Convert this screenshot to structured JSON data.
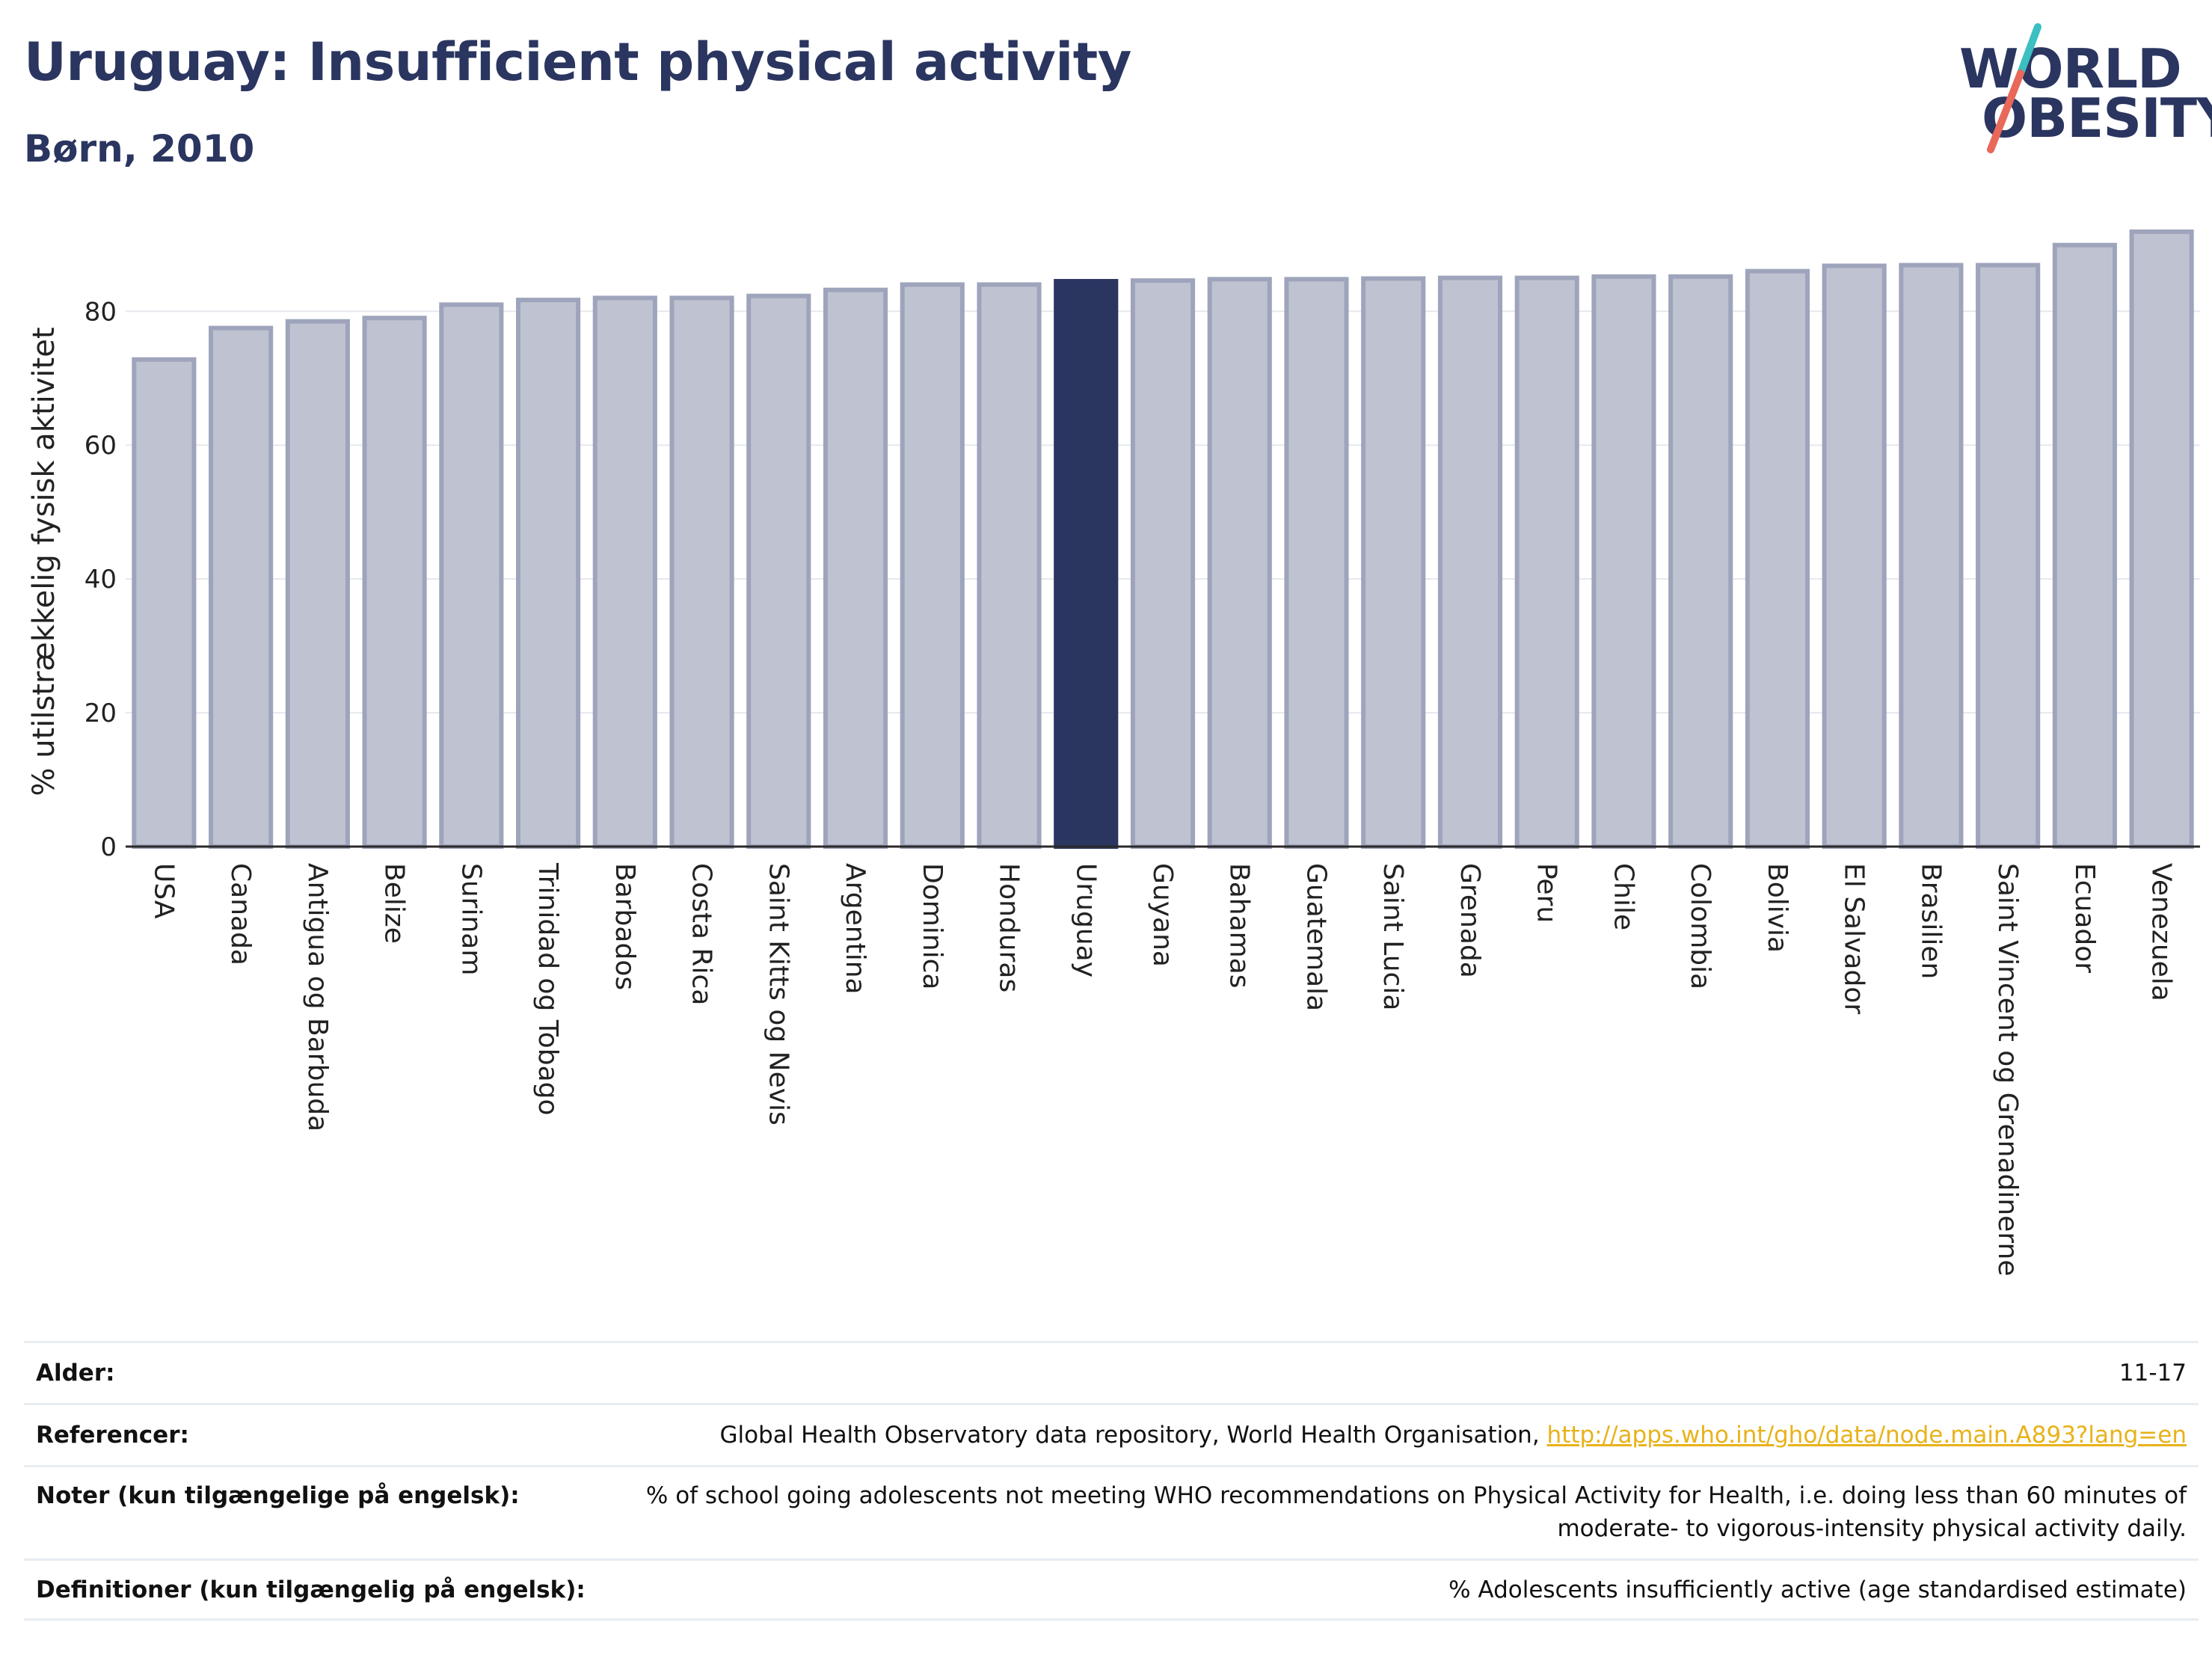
{
  "header": {
    "title": "Uruguay: Insufficient physical activity",
    "subtitle": "Børn, 2010"
  },
  "logo": {
    "line1": "WORLD",
    "line2": "OBESITY",
    "colors": {
      "text": "#2a3560",
      "slash_top": "#3bbfc1",
      "slash_bottom": "#e8685a"
    }
  },
  "chart_data": {
    "type": "bar",
    "ylabel": "% utilstrækkelig fysisk aktivitet",
    "xlabel": "",
    "ylim": [
      0,
      93
    ],
    "yticks": [
      0,
      20,
      40,
      60,
      80
    ],
    "grid": true,
    "highlight": "Uruguay",
    "colors": {
      "bar": "#bfc3d1",
      "bar_edge": "#9ea4bb",
      "highlight": "#2a3560",
      "grid": "#e6e8ee",
      "axis": "#2a2a2a"
    },
    "categories": [
      "USA",
      "Canada",
      "Antigua og Barbuda",
      "Belize",
      "Surinam",
      "Trinidad og Tobago",
      "Barbados",
      "Costa Rica",
      "Saint Kitts og Nevis",
      "Argentina",
      "Dominica",
      "Honduras",
      "Uruguay",
      "Guyana",
      "Bahamas",
      "Guatemala",
      "Saint Lucia",
      "Grenada",
      "Peru",
      "Chile",
      "Colombia",
      "Bolivia",
      "El Salvador",
      "Brasilien",
      "Saint Vincent og Grenadinerne",
      "Ecuador",
      "Venezuela"
    ],
    "values": [
      72.8,
      77.5,
      78.5,
      79.0,
      81.0,
      81.7,
      82.0,
      82.0,
      82.3,
      83.2,
      84.0,
      84.0,
      84.5,
      84.6,
      84.8,
      84.8,
      84.9,
      85.0,
      85.0,
      85.2,
      85.2,
      86.0,
      86.8,
      86.9,
      86.9,
      89.9,
      91.9
    ]
  },
  "meta": [
    {
      "label": "Alder:",
      "value": "11-17"
    },
    {
      "label": "Referencer:",
      "value": "Global Health Observatory data repository, World Health Organisation, ",
      "link": "http://apps.who.int/gho/data/node.main.A893?lang=en"
    },
    {
      "label": "Noter (kun tilgængelige på engelsk):",
      "value": "% of school going adolescents not meeting WHO recommendations on Physical Activity for Health, i.e. doing less than 60 minutes of",
      "value2": "moderate- to vigorous-intensity physical activity daily."
    },
    {
      "label": "Definitioner (kun tilgængelig på engelsk):",
      "value": "% Adolescents insufficiently active (age standardised estimate)"
    }
  ]
}
